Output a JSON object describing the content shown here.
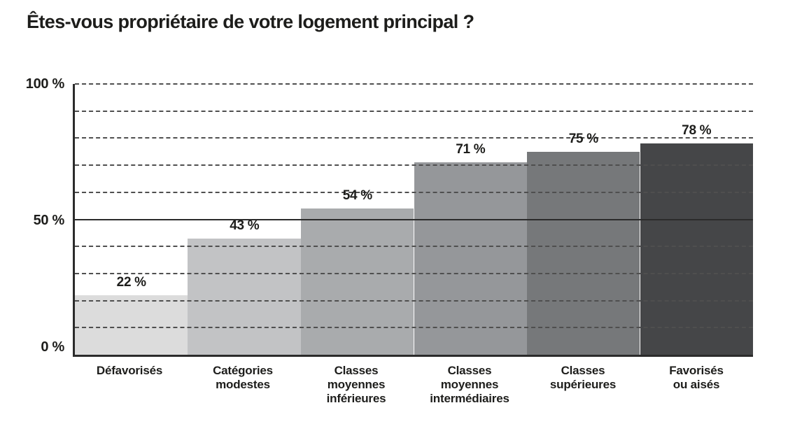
{
  "title": "Êtes-vous propriétaire de votre logement principal ?",
  "colors": {
    "background": "#ffffff",
    "text": "#1d1d1b",
    "axis": "#2b2b2b",
    "gridline_dashed": "#4f4f4f",
    "fifty_percent_line": "#2b2b2b"
  },
  "chart_data": {
    "type": "bar",
    "title": "Êtes-vous propriétaire de votre logement principal ?",
    "categories": [
      "Défavorisés",
      "Catégories\nmodestes",
      "Classes\nmoyennes\ninférieures",
      "Classes\nmoyennes\nintermédiaires",
      "Classes\nsupérieures",
      "Favorisés\nou aisés"
    ],
    "values": [
      22,
      43,
      54,
      71,
      75,
      78
    ],
    "value_labels": [
      "22 %",
      "43 %",
      "54 %",
      "71 %",
      "75 %",
      "78 %"
    ],
    "bar_colors": [
      "#dcdcdc",
      "#c2c3c5",
      "#a9abad",
      "#95979a",
      "#76787a",
      "#454648"
    ],
    "xlabel": "",
    "ylabel": "",
    "ylim": [
      0,
      100
    ],
    "yticks": [
      {
        "value": 100,
        "label": "100 %"
      },
      {
        "value": 50,
        "label": "50 %"
      },
      {
        "value": 0,
        "label": "0 %"
      }
    ],
    "dashed_gridlines": [
      100,
      90,
      80,
      70,
      60,
      40,
      30,
      20,
      10
    ],
    "solid_line_at": 50,
    "grid": "dashed horizontal, drawn over bars",
    "legend": "none",
    "bar_gap": 0
  }
}
